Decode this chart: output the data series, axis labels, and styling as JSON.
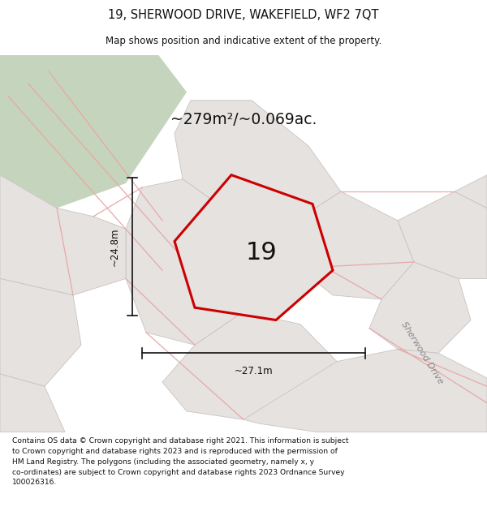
{
  "title_line1": "19, SHERWOOD DRIVE, WAKEFIELD, WF2 7QT",
  "title_line2": "Map shows position and indicative extent of the property.",
  "area_text": "~279m²/~0.069ac.",
  "plot_number": "19",
  "dim_width": "~27.1m",
  "dim_height": "~24.8m",
  "road_label": "Sherwood Drive",
  "footer_lines": [
    "Contains OS data © Crown copyright and database right 2021. This information is subject",
    "to Crown copyright and database rights 2023 and is reproduced with the permission of",
    "HM Land Registry. The polygons (including the associated geometry, namely x, y",
    "co-ordinates) are subject to Crown copyright and database rights 2023 Ordnance Survey",
    "100026316."
  ],
  "map_bg": "#f0eeed",
  "green_area_color": "#c5d4bc",
  "parcel_fill": "#e5e2e0",
  "parcel_edge": "#c8c4c2",
  "road_fill": "#e0dbd8",
  "red_outline_color": "#cc0000",
  "light_red_color": "#e8a8a8",
  "white_bg": "#ffffff",
  "dim_line_color": "#111111",
  "road_label_color": "#888888"
}
